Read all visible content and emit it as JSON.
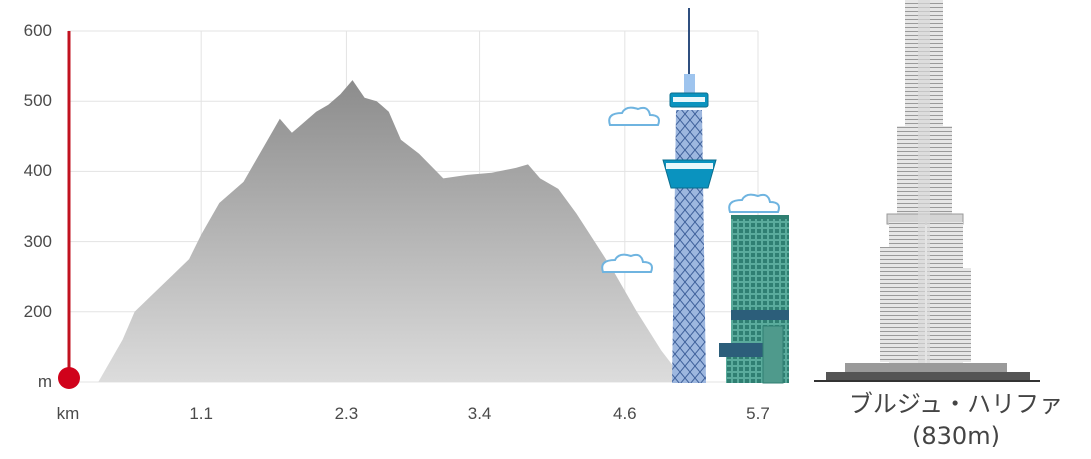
{
  "chart_data": {
    "type": "area",
    "title": "",
    "xlabel": "",
    "ylabel": "",
    "x_unit_label": "km",
    "y_unit_label": "m",
    "xlim": [
      0,
      5.7
    ],
    "ylim": [
      0,
      600
    ],
    "x_ticks": [
      "1.1",
      "2.3",
      "3.4",
      "4.6",
      "5.7"
    ],
    "y_ticks": [
      "200",
      "300",
      "400",
      "500",
      "600"
    ],
    "grid": true,
    "series": [
      {
        "x": [
          0,
          0.1,
          0.25,
          0.45,
          0.55,
          0.7,
          0.85,
          1.0,
          1.1,
          1.25,
          1.45,
          1.6,
          1.75,
          1.85,
          1.95,
          2.05,
          2.15,
          2.25,
          2.35,
          2.45,
          2.55,
          2.65,
          2.75,
          2.9,
          3.1,
          3.3,
          3.5,
          3.7,
          3.8,
          3.9,
          4.05,
          4.2,
          4.35,
          4.5,
          4.7,
          4.9,
          5.1,
          5.3,
          5.5,
          5.7
        ],
        "values": [
          8,
          15,
          55,
          160,
          200,
          225,
          250,
          275,
          310,
          355,
          385,
          430,
          475,
          455,
          470,
          485,
          495,
          510,
          530,
          505,
          500,
          485,
          445,
          425,
          390,
          395,
          398,
          405,
          410,
          390,
          375,
          340,
          300,
          260,
          200,
          145,
          95,
          55,
          25,
          15
        ]
      }
    ]
  },
  "reference": {
    "label": "ブルジュ・ハリファ",
    "height_label": "(830m)"
  },
  "colors": {
    "area_top": "#8c8c8c",
    "area_bottom": "#d9d9d9",
    "marker": "#d0021b",
    "grid": "#e3e3e3",
    "tower_blue": "#0a93bf",
    "building_green": "#5aab9c",
    "burj_gray": "#c9c9c9"
  },
  "icons": [
    "sky-tower-icon",
    "office-building-icon",
    "burj-khalifa-icon",
    "cloud-icon"
  ]
}
